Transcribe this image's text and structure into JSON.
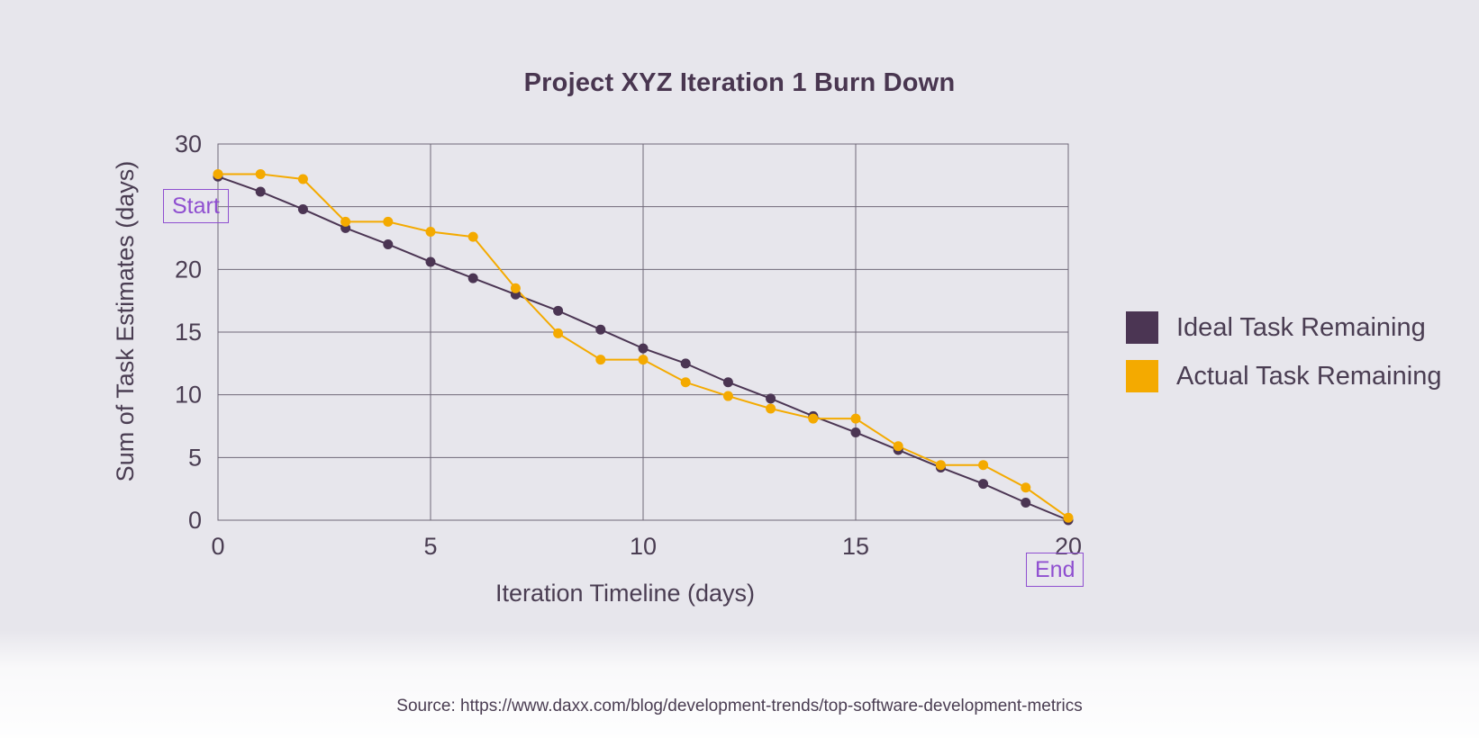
{
  "colors": {
    "ideal": "#4b3553",
    "actual": "#f4aa00",
    "background": "#e7e6ec",
    "annotation": "#8f4fd0",
    "grid": "#6f6878",
    "text": "#4a3d52"
  },
  "chart_data": {
    "type": "line",
    "title": "Project XYZ Iteration 1 Burn Down",
    "xlabel": "Iteration Timeline (days)",
    "ylabel": "Sum of Task Estimates (days)",
    "xlim": [
      0,
      20
    ],
    "ylim": [
      0,
      30
    ],
    "x_ticks": [
      0,
      5,
      10,
      15,
      20
    ],
    "y_ticks": [
      0,
      5,
      10,
      15,
      20,
      30
    ],
    "grid": true,
    "legend_position": "right",
    "x": [
      0,
      1,
      2,
      3,
      4,
      5,
      6,
      7,
      8,
      9,
      10,
      11,
      12,
      13,
      14,
      15,
      16,
      17,
      18,
      19,
      20
    ],
    "series": [
      {
        "name": "Ideal Task Remaining",
        "values": [
          27.4,
          26.2,
          24.8,
          23.3,
          22.0,
          20.6,
          19.3,
          18.0,
          16.7,
          15.2,
          13.7,
          12.5,
          11.0,
          9.7,
          8.3,
          7.0,
          5.6,
          4.2,
          2.9,
          1.4,
          0
        ]
      },
      {
        "name": "Actual Task Remaining",
        "values": [
          27.6,
          27.6,
          27.2,
          23.8,
          23.8,
          23.0,
          22.6,
          18.5,
          14.9,
          12.8,
          12.8,
          11.0,
          9.9,
          8.9,
          8.1,
          8.1,
          5.9,
          4.4,
          4.4,
          2.6,
          0.2
        ]
      }
    ],
    "annotations": [
      {
        "label": "Start",
        "x": 0,
        "y": 27.4
      },
      {
        "label": "End",
        "x": 20,
        "y": 0
      }
    ]
  },
  "legend": {
    "items": [
      {
        "label": "Ideal Task Remaining",
        "color": "#4b3553"
      },
      {
        "label": "Actual Task Remaining",
        "color": "#f4aa00"
      }
    ]
  },
  "footer": {
    "source": "Source: https://www.daxx.com/blog/development-trends/top-software-development-metrics"
  }
}
